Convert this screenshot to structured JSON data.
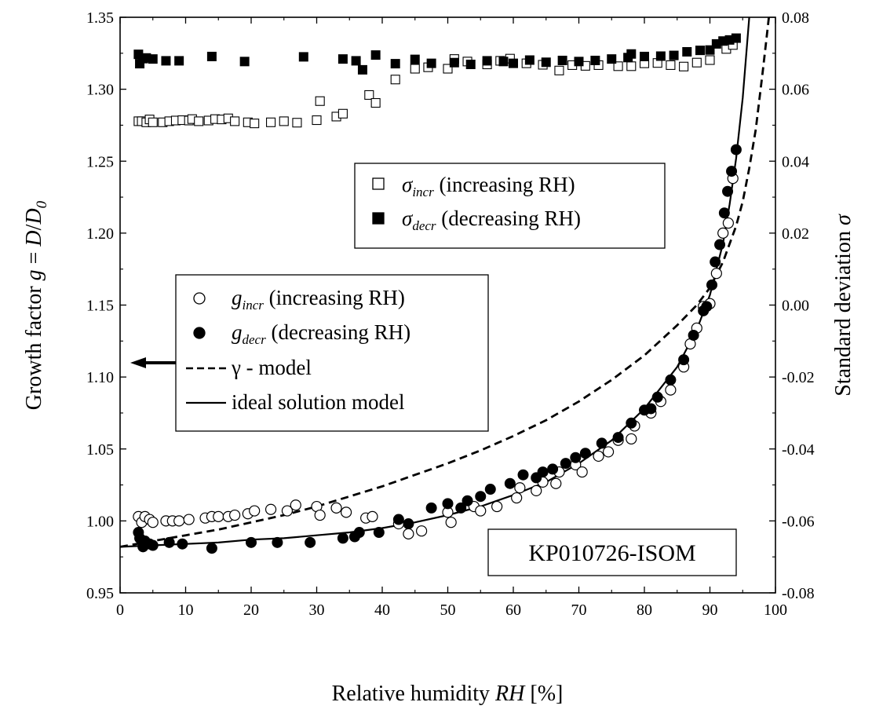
{
  "chart_data": {
    "type": "scatter",
    "xlabel": {
      "main": "Relative humidity ",
      "italic": "RH",
      "unit": " [%]"
    },
    "ylabel_left": {
      "main": "Growth factor  ",
      "g": "g",
      "eq": " = ",
      "D": "D",
      "slash": "/",
      "D0": "D",
      "sub": "0"
    },
    "ylabel_right": {
      "main": "Standard deviation ",
      "sym": "σ"
    },
    "xlim": [
      0,
      100
    ],
    "ylim_left": [
      0.95,
      1.35
    ],
    "ylim_right": [
      -0.08,
      0.08
    ],
    "x_ticks": [
      "0",
      "10",
      "20",
      "30",
      "40",
      "50",
      "60",
      "70",
      "80",
      "90",
      "100"
    ],
    "y_left_ticks": [
      "0.95",
      "1.00",
      "1.05",
      "1.10",
      "1.15",
      "1.20",
      "1.25",
      "1.30",
      "1.35"
    ],
    "y_right_ticks": [
      "-0.08",
      "-0.06",
      "-0.04",
      "-0.02",
      "0.00",
      "0.02",
      "0.04",
      "0.06",
      "0.08"
    ],
    "legend_sigma": {
      "position": "upper-center-right",
      "entries": [
        {
          "sym": "σ",
          "sub": "incr",
          "text": " (increasing RH)",
          "marker": "open-square"
        },
        {
          "sym": "σ",
          "sub": "decr",
          "text": " (decreasing RH)",
          "marker": "filled-square"
        }
      ]
    },
    "legend_g": {
      "position": "middle-left",
      "entries": [
        {
          "sym": "g",
          "sub": "incr",
          "text": " (increasing RH)",
          "marker": "open-circle"
        },
        {
          "sym": "g",
          "sub": "decr",
          "text": " (decreasing RH)",
          "marker": "filled-circle"
        },
        {
          "text": "γ - model",
          "marker": "dashed-line"
        },
        {
          "text": "ideal solution model",
          "marker": "solid-line"
        }
      ]
    },
    "sample_label": "KP010726-ISOM",
    "arrow": {
      "direction": "left",
      "points_to": "left axis"
    },
    "series": [
      {
        "name": "g_incr",
        "axis": "left",
        "marker": "open-circle",
        "points": [
          [
            2.8,
            1.003
          ],
          [
            3.3,
            0.999
          ],
          [
            3.8,
            1.003
          ],
          [
            4.5,
            1.001
          ],
          [
            5.0,
            0.999
          ],
          [
            7.0,
            1.0
          ],
          [
            8.0,
            1.0
          ],
          [
            9.0,
            1.0
          ],
          [
            10.5,
            1.001
          ],
          [
            13.0,
            1.002
          ],
          [
            14.0,
            1.003
          ],
          [
            15.0,
            1.003
          ],
          [
            16.5,
            1.003
          ],
          [
            17.5,
            1.004
          ],
          [
            19.5,
            1.005
          ],
          [
            20.5,
            1.007
          ],
          [
            23.0,
            1.008
          ],
          [
            25.5,
            1.007
          ],
          [
            26.8,
            1.011
          ],
          [
            30.0,
            1.01
          ],
          [
            30.5,
            1.004
          ],
          [
            33.0,
            1.009
          ],
          [
            34.5,
            1.006
          ],
          [
            37.5,
            1.002
          ],
          [
            38.5,
            1.003
          ],
          [
            42.5,
            0.998
          ],
          [
            44.0,
            0.991
          ],
          [
            46.0,
            0.993
          ],
          [
            50.0,
            1.006
          ],
          [
            50.5,
            0.999
          ],
          [
            54.0,
            1.01
          ],
          [
            55.0,
            1.007
          ],
          [
            57.5,
            1.01
          ],
          [
            60.5,
            1.016
          ],
          [
            61.0,
            1.023
          ],
          [
            63.5,
            1.021
          ],
          [
            64.5,
            1.027
          ],
          [
            66.5,
            1.026
          ],
          [
            67.0,
            1.034
          ],
          [
            69.5,
            1.039
          ],
          [
            70.5,
            1.034
          ],
          [
            73.0,
            1.045
          ],
          [
            74.5,
            1.048
          ],
          [
            76.0,
            1.056
          ],
          [
            78.0,
            1.057
          ],
          [
            78.5,
            1.066
          ],
          [
            81.0,
            1.075
          ],
          [
            82.5,
            1.083
          ],
          [
            84.0,
            1.091
          ],
          [
            86.0,
            1.107
          ],
          [
            87.0,
            1.123
          ],
          [
            88.0,
            1.134
          ],
          [
            89.0,
            1.149
          ],
          [
            90.0,
            1.151
          ],
          [
            91.0,
            1.172
          ],
          [
            92.0,
            1.2
          ],
          [
            92.8,
            1.207
          ],
          [
            93.5,
            1.238
          ]
        ]
      },
      {
        "name": "g_decr",
        "axis": "left",
        "marker": "filled-circle",
        "points": [
          [
            2.8,
            0.992
          ],
          [
            3.0,
            0.988
          ],
          [
            3.5,
            0.982
          ],
          [
            3.8,
            0.986
          ],
          [
            4.5,
            0.984
          ],
          [
            5.0,
            0.983
          ],
          [
            7.5,
            0.985
          ],
          [
            9.5,
            0.984
          ],
          [
            14.0,
            0.981
          ],
          [
            20.0,
            0.985
          ],
          [
            24.0,
            0.985
          ],
          [
            29.0,
            0.985
          ],
          [
            34.0,
            0.988
          ],
          [
            35.8,
            0.989
          ],
          [
            36.5,
            0.992
          ],
          [
            39.5,
            0.992
          ],
          [
            42.5,
            1.001
          ],
          [
            44.0,
            0.998
          ],
          [
            47.5,
            1.009
          ],
          [
            50.0,
            1.012
          ],
          [
            52.0,
            1.009
          ],
          [
            53.0,
            1.014
          ],
          [
            55.0,
            1.017
          ],
          [
            56.5,
            1.022
          ],
          [
            59.5,
            1.026
          ],
          [
            61.5,
            1.032
          ],
          [
            63.5,
            1.03
          ],
          [
            64.5,
            1.034
          ],
          [
            66.0,
            1.036
          ],
          [
            68.0,
            1.04
          ],
          [
            69.5,
            1.044
          ],
          [
            71.0,
            1.047
          ],
          [
            73.5,
            1.054
          ],
          [
            76.0,
            1.058
          ],
          [
            78.0,
            1.068
          ],
          [
            80.0,
            1.077
          ],
          [
            81.0,
            1.078
          ],
          [
            82.0,
            1.086
          ],
          [
            84.0,
            1.098
          ],
          [
            86.0,
            1.112
          ],
          [
            87.5,
            1.129
          ],
          [
            89.0,
            1.146
          ],
          [
            89.5,
            1.149
          ],
          [
            90.3,
            1.164
          ],
          [
            90.8,
            1.18
          ],
          [
            91.5,
            1.192
          ],
          [
            92.2,
            1.214
          ],
          [
            92.7,
            1.229
          ],
          [
            93.3,
            1.243
          ],
          [
            94.0,
            1.258
          ]
        ]
      },
      {
        "name": "sigma_incr",
        "axis": "right",
        "marker": "open-square",
        "points": [
          [
            2.8,
            0.0511
          ],
          [
            3.3,
            0.0511
          ],
          [
            4.0,
            0.0508
          ],
          [
            4.5,
            0.0516
          ],
          [
            5.0,
            0.0508
          ],
          [
            6.5,
            0.0508
          ],
          [
            7.5,
            0.0511
          ],
          [
            8.5,
            0.0513
          ],
          [
            9.5,
            0.0514
          ],
          [
            10.5,
            0.0513
          ],
          [
            11.0,
            0.0517
          ],
          [
            12.0,
            0.0511
          ],
          [
            13.5,
            0.0513
          ],
          [
            14.5,
            0.0517
          ],
          [
            15.5,
            0.0516
          ],
          [
            16.5,
            0.0519
          ],
          [
            17.5,
            0.0511
          ],
          [
            19.5,
            0.0508
          ],
          [
            20.5,
            0.0505
          ],
          [
            23.0,
            0.0508
          ],
          [
            25.0,
            0.0511
          ],
          [
            27.0,
            0.0507
          ],
          [
            30.0,
            0.0514
          ],
          [
            30.5,
            0.0567
          ],
          [
            33.0,
            0.0524
          ],
          [
            34.0,
            0.0532
          ],
          [
            38.0,
            0.0584
          ],
          [
            39.0,
            0.0562
          ],
          [
            42.0,
            0.0627
          ],
          [
            45.0,
            0.0657
          ],
          [
            47.0,
            0.0661
          ],
          [
            50.0,
            0.0657
          ],
          [
            51.0,
            0.0684
          ],
          [
            53.0,
            0.0677
          ],
          [
            56.0,
            0.0669
          ],
          [
            58.0,
            0.0679
          ],
          [
            59.5,
            0.0685
          ],
          [
            62.0,
            0.0672
          ],
          [
            64.5,
            0.0668
          ],
          [
            67.0,
            0.0652
          ],
          [
            69.0,
            0.0667
          ],
          [
            71.0,
            0.0665
          ],
          [
            73.0,
            0.0667
          ],
          [
            76.0,
            0.0664
          ],
          [
            78.0,
            0.0664
          ],
          [
            80.0,
            0.0672
          ],
          [
            82.0,
            0.0673
          ],
          [
            84.0,
            0.0667
          ],
          [
            86.0,
            0.0663
          ],
          [
            88.0,
            0.0674
          ],
          [
            90.0,
            0.0681
          ],
          [
            92.5,
            0.0712
          ],
          [
            93.5,
            0.0723
          ]
        ]
      },
      {
        "name": "sigma_decr",
        "axis": "right",
        "marker": "filled-square",
        "points": [
          [
            2.8,
            0.0697
          ],
          [
            3.0,
            0.0671
          ],
          [
            3.5,
            0.0685
          ],
          [
            4.0,
            0.0687
          ],
          [
            5.0,
            0.0684
          ],
          [
            7.0,
            0.0679
          ],
          [
            9.0,
            0.0679
          ],
          [
            14.0,
            0.0691
          ],
          [
            19.0,
            0.0677
          ],
          [
            28.0,
            0.069
          ],
          [
            34.0,
            0.0684
          ],
          [
            36.0,
            0.0679
          ],
          [
            37.0,
            0.0654
          ],
          [
            39.0,
            0.0695
          ],
          [
            42.0,
            0.0671
          ],
          [
            45.0,
            0.0683
          ],
          [
            47.5,
            0.0672
          ],
          [
            51.0,
            0.0674
          ],
          [
            53.5,
            0.0669
          ],
          [
            56.0,
            0.0679
          ],
          [
            58.5,
            0.0677
          ],
          [
            60.0,
            0.0672
          ],
          [
            62.5,
            0.0681
          ],
          [
            65.0,
            0.0675
          ],
          [
            67.5,
            0.068
          ],
          [
            70.0,
            0.0677
          ],
          [
            72.5,
            0.068
          ],
          [
            75.0,
            0.0684
          ],
          [
            77.5,
            0.0688
          ],
          [
            78.0,
            0.0698
          ],
          [
            80.0,
            0.0691
          ],
          [
            82.5,
            0.0692
          ],
          [
            84.5,
            0.0694
          ],
          [
            86.5,
            0.0704
          ],
          [
            88.5,
            0.0708
          ],
          [
            90.0,
            0.0709
          ],
          [
            91.0,
            0.0726
          ],
          [
            92.0,
            0.0734
          ],
          [
            93.0,
            0.0737
          ],
          [
            94.0,
            0.0742
          ]
        ]
      },
      {
        "name": "ideal solution model",
        "axis": "left",
        "style": "solid",
        "points": [
          [
            0,
            0.982
          ],
          [
            5,
            0.983
          ],
          [
            10,
            0.984
          ],
          [
            15,
            0.985
          ],
          [
            20,
            0.987
          ],
          [
            25,
            0.988
          ],
          [
            30,
            0.99
          ],
          [
            35,
            0.992
          ],
          [
            40,
            0.995
          ],
          [
            45,
            0.999
          ],
          [
            50,
            1.004
          ],
          [
            55,
            1.01
          ],
          [
            60,
            1.018
          ],
          [
            65,
            1.027
          ],
          [
            70,
            1.04
          ],
          [
            75,
            1.056
          ],
          [
            80,
            1.078
          ],
          [
            85,
            1.107
          ],
          [
            88,
            1.133
          ],
          [
            90,
            1.157
          ],
          [
            92,
            1.193
          ],
          [
            93,
            1.22
          ],
          [
            94,
            1.252
          ],
          [
            95,
            1.294
          ],
          [
            96,
            1.35
          ]
        ]
      },
      {
        "name": "γ - model",
        "axis": "left",
        "style": "dashed",
        "points": [
          [
            0,
            0.982
          ],
          [
            5,
            0.986
          ],
          [
            10,
            0.99
          ],
          [
            15,
            0.994
          ],
          [
            20,
            0.999
          ],
          [
            25,
            1.004
          ],
          [
            30,
            1.01
          ],
          [
            35,
            1.017
          ],
          [
            40,
            1.024
          ],
          [
            45,
            1.032
          ],
          [
            50,
            1.04
          ],
          [
            55,
            1.049
          ],
          [
            60,
            1.059
          ],
          [
            65,
            1.07
          ],
          [
            70,
            1.083
          ],
          [
            75,
            1.098
          ],
          [
            80,
            1.115
          ],
          [
            85,
            1.136
          ],
          [
            88,
            1.15
          ],
          [
            90,
            1.162
          ],
          [
            92,
            1.18
          ],
          [
            94,
            1.205
          ],
          [
            95,
            1.222
          ],
          [
            96,
            1.245
          ],
          [
            97,
            1.272
          ],
          [
            98,
            1.31
          ],
          [
            98.5,
            1.33
          ],
          [
            99,
            1.35
          ]
        ]
      }
    ]
  }
}
